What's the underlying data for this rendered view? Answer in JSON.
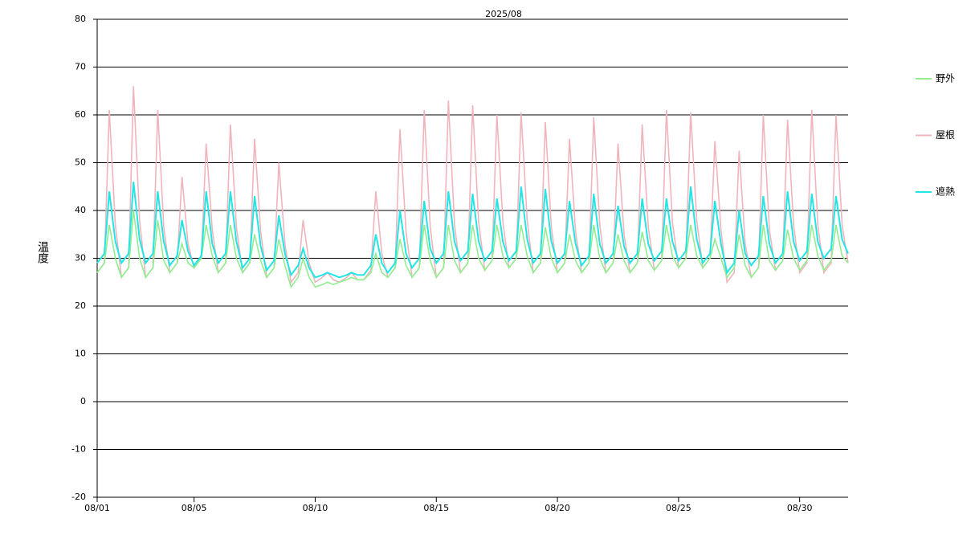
{
  "chart_data": {
    "type": "line",
    "title": "2025/08",
    "y_label": "温度",
    "xlim": [
      0,
      31
    ],
    "ylim": [
      -20,
      80
    ],
    "xticks": [
      {
        "value": 0,
        "label": "08/01"
      },
      {
        "value": 4,
        "label": "08/05"
      },
      {
        "value": 9,
        "label": "08/10"
      },
      {
        "value": 14,
        "label": "08/15"
      },
      {
        "value": 19,
        "label": "08/20"
      },
      {
        "value": 24,
        "label": "08/25"
      },
      {
        "value": 29,
        "label": "08/30"
      }
    ],
    "yticks": [
      -20,
      -10,
      0,
      10,
      20,
      30,
      40,
      50,
      60,
      70,
      80
    ],
    "grid": true,
    "legend": "right",
    "x": [
      0,
      0.3,
      0.5,
      0.75,
      1,
      1.3,
      1.5,
      1.75,
      2,
      2.3,
      2.5,
      2.75,
      3,
      3.3,
      3.5,
      3.75,
      4,
      4.3,
      4.5,
      4.75,
      5,
      5.3,
      5.5,
      5.75,
      6,
      6.3,
      6.5,
      6.75,
      7,
      7.3,
      7.5,
      7.75,
      8,
      8.3,
      8.5,
      8.75,
      9,
      9.3,
      9.5,
      9.75,
      10,
      10.3,
      10.5,
      10.75,
      11,
      11.3,
      11.5,
      11.75,
      12,
      12.3,
      12.5,
      12.75,
      13,
      13.3,
      13.5,
      13.75,
      14,
      14.3,
      14.5,
      14.75,
      15,
      15.3,
      15.5,
      15.75,
      16,
      16.3,
      16.5,
      16.75,
      17,
      17.3,
      17.5,
      17.75,
      18,
      18.3,
      18.5,
      18.75,
      19,
      19.3,
      19.5,
      19.75,
      20,
      20.3,
      20.5,
      20.75,
      21,
      21.3,
      21.5,
      21.75,
      22,
      22.3,
      22.5,
      22.75,
      23,
      23.3,
      23.5,
      23.75,
      24,
      24.3,
      24.5,
      24.75,
      25,
      25.3,
      25.5,
      25.75,
      26,
      26.3,
      26.5,
      26.75,
      27,
      27.3,
      27.5,
      27.75,
      28,
      28.3,
      28.5,
      28.75,
      29,
      29.3,
      29.5,
      29.75,
      30,
      30.3,
      30.5,
      30.75,
      31
    ],
    "series": [
      {
        "name": "野外",
        "color": "#90ee90",
        "values": [
          27,
          29,
          37,
          30,
          26,
          28,
          40,
          30,
          26,
          28,
          38,
          29.5,
          27,
          29,
          33,
          29,
          28,
          30,
          37,
          30.5,
          27,
          29,
          37,
          30,
          27,
          29,
          35,
          29.5,
          26,
          28,
          34,
          28.5,
          24,
          26,
          30,
          26,
          24,
          24.5,
          25,
          24.5,
          25,
          25.5,
          26,
          25.5,
          25.5,
          27,
          31,
          27,
          26,
          28,
          34,
          28.5,
          26,
          28,
          37,
          29.5,
          26,
          28,
          37,
          29.5,
          27,
          29,
          37,
          30,
          27.5,
          29.5,
          37,
          30.5,
          28,
          30,
          37,
          30.5,
          27,
          29,
          36.5,
          30,
          27,
          29,
          35,
          29.5,
          27,
          29,
          37,
          30,
          27,
          29,
          35,
          29.5,
          27,
          29,
          35.5,
          29.5,
          27.5,
          29.5,
          37,
          30.5,
          28,
          30,
          37,
          30.5,
          28,
          30,
          34,
          30,
          26,
          28,
          35,
          28.5,
          26,
          28,
          37,
          29.5,
          27.5,
          29.5,
          36,
          30,
          27.5,
          29.5,
          37,
          30.5,
          27.5,
          29.5,
          37,
          30.5,
          29
        ]
      },
      {
        "name": "屋根",
        "color": "#f0b4bc",
        "values": [
          27,
          29,
          61,
          37,
          26,
          28,
          66,
          38,
          26,
          28,
          61,
          36.5,
          27,
          29,
          47,
          33,
          28,
          30,
          54,
          36,
          27,
          29,
          58,
          36.5,
          27,
          29,
          55,
          35.5,
          26,
          28,
          50,
          33,
          25,
          27,
          38,
          29,
          25,
          26,
          27,
          25.5,
          25,
          26,
          27,
          25.5,
          25.5,
          27.5,
          44,
          31,
          26,
          28,
          57,
          35.5,
          26,
          28,
          61,
          36.5,
          26,
          28,
          63,
          37,
          27,
          29,
          62,
          37.5,
          27.5,
          29.5,
          60,
          37.5,
          28,
          30,
          60.5,
          38,
          27,
          29,
          58.5,
          36.5,
          27,
          29,
          55,
          35.5,
          27,
          29,
          59.5,
          37,
          27,
          29,
          54,
          35,
          27,
          29,
          58,
          36.5,
          27.5,
          29.5,
          61,
          37.5,
          28,
          30,
          60.5,
          38,
          28,
          30,
          54.5,
          36,
          25,
          27,
          52.5,
          33,
          26,
          28,
          60,
          36,
          27.5,
          29.5,
          59,
          37,
          27,
          29,
          61,
          37,
          27,
          29,
          60,
          37,
          29
        ]
      },
      {
        "name": "遮熱",
        "color": "#22e5e5",
        "values": [
          29,
          31,
          44,
          33.5,
          29,
          31,
          46,
          34,
          29,
          31,
          44,
          33.5,
          28.5,
          30.5,
          38,
          31.5,
          28.5,
          30.5,
          44,
          33,
          29,
          31,
          44,
          33.5,
          28,
          30,
          43,
          32.5,
          27.5,
          29.5,
          39,
          31,
          26.5,
          28.5,
          32,
          28,
          26,
          26.5,
          27,
          26.5,
          26,
          26.5,
          27,
          26.5,
          26.5,
          28.5,
          35,
          29,
          27,
          29,
          40,
          31,
          28,
          30,
          42,
          32,
          29,
          31,
          44,
          33.5,
          29.5,
          31.5,
          43.5,
          33.5,
          29.5,
          31.5,
          42.5,
          33.5,
          29.5,
          31.5,
          45,
          34,
          29,
          31,
          44.5,
          33.5,
          29,
          31,
          42,
          33,
          28.5,
          30.5,
          43.5,
          33,
          29,
          31,
          41,
          32.5,
          29,
          31,
          42.5,
          33,
          29.5,
          31.5,
          42.5,
          33.5,
          29.5,
          31.5,
          45,
          34,
          29,
          31,
          42,
          33,
          27,
          29,
          40,
          31,
          28.5,
          30.5,
          43,
          33,
          29,
          31,
          44,
          33.5,
          29.5,
          31.5,
          43.5,
          33.5,
          30,
          32,
          43,
          34,
          31
        ]
      }
    ]
  }
}
